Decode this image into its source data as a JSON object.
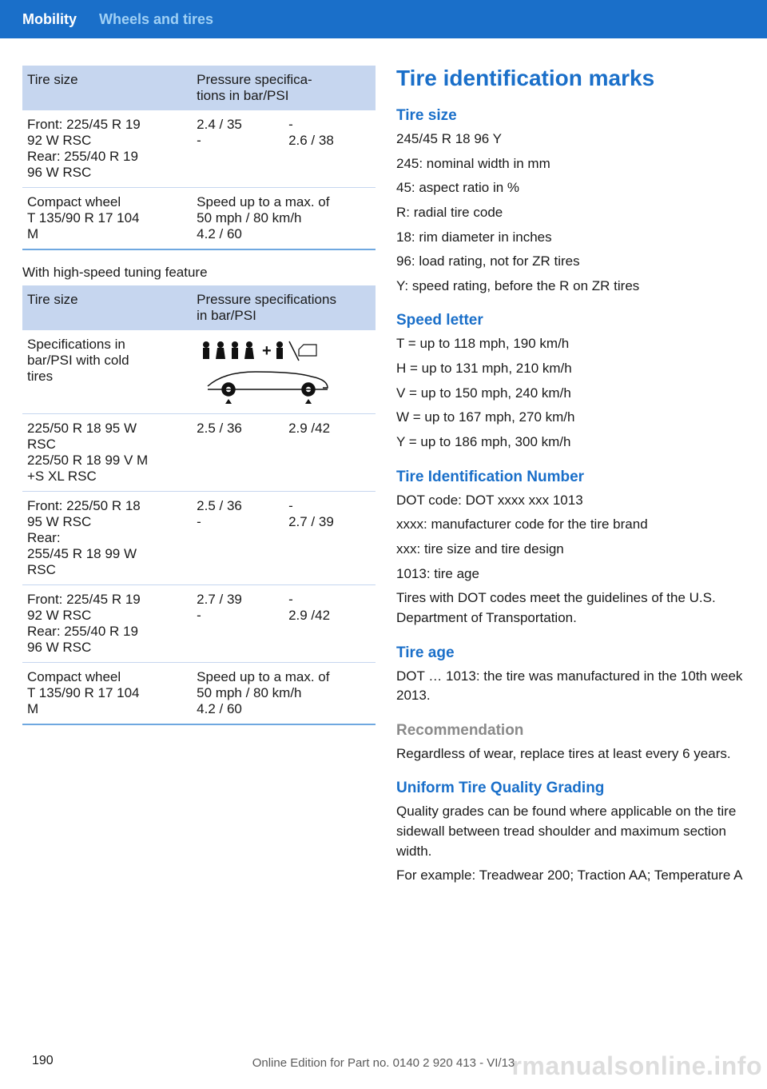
{
  "header": {
    "tab": "Mobility",
    "sub": "Wheels and tires"
  },
  "table1": {
    "h1": "Tire size",
    "h2": "Pressure specifica‐\ntions in bar/PSI",
    "rows": [
      {
        "c1": "Front: 225/45 R 19\n92 W RSC\nRear: 255/40 R 19\n96 W RSC",
        "c2a": "2.4 / 35\n-",
        "c2b": "-\n2.6 / 38"
      },
      {
        "c1": "Compact wheel\nT 135/90 R 17 104\nM",
        "c2": "Speed up to a max. of\n50 mph / 80 km/h\n4.2 / 60"
      }
    ]
  },
  "caption": "With high-speed tuning feature",
  "table2": {
    "h1": "Tire size",
    "h2": "Pressure specifications\nin bar/PSI",
    "rows": [
      {
        "c1": "Specifications in\nbar/PSI with cold\ntires",
        "svg": true
      },
      {
        "c1": "225/50 R 18 95 W\nRSC\n225/50 R 18 99 V M\n+S XL RSC",
        "c2a": "2.5 / 36",
        "c2b": "2.9 /42"
      },
      {
        "c1": "Front: 225/50 R 18\n95 W RSC\nRear:\n255/45 R 18 99 W\nRSC",
        "c2a": "2.5 / 36\n-",
        "c2b": "-\n2.7 / 39"
      },
      {
        "c1": "Front: 225/45 R 19\n92 W RSC\nRear: 255/40 R 19\n96 W RSC",
        "c2a": "2.7 / 39\n-",
        "c2b": "-\n2.9 /42"
      },
      {
        "c1": "Compact wheel\nT 135/90 R 17 104\nM",
        "c2": "Speed up to a max. of\n50 mph / 80 km/h\n4.2 / 60"
      }
    ]
  },
  "right": {
    "title": "Tire identification marks",
    "sections": [
      {
        "h": "Tire size",
        "lines": [
          "245/45 R 18 96 Y",
          "245: nominal width in mm",
          "45: aspect ratio in %",
          "R: radial tire code",
          "18: rim diameter in inches",
          "96: load rating, not for ZR tires",
          "Y: speed rating, before the R on ZR tires"
        ]
      },
      {
        "h": "Speed letter",
        "lines": [
          "T = up to 118 mph, 190 km/h",
          "H = up to 131 mph, 210 km/h",
          "V = up to 150 mph, 240 km/h",
          "W = up to 167 mph, 270 km/h",
          "Y = up to 186 mph, 300 km/h"
        ]
      },
      {
        "h": "Tire Identification Number",
        "lines": [
          "DOT code: DOT xxxx xxx 1013",
          "xxxx: manufacturer code for the tire brand",
          "xxx: tire size and tire design",
          "1013: tire age",
          "Tires with DOT codes meet the guidelines of the U.S. Department of Transportation."
        ]
      },
      {
        "h": "Tire age",
        "lines": [
          "DOT … 1013: the tire was manufactured in the 10th week 2013."
        ]
      },
      {
        "h": "Recommendation",
        "gray": true,
        "lines": [
          "Regardless of wear, replace tires at least every 6 years."
        ]
      },
      {
        "h": "Uniform Tire Quality Grading",
        "lines": [
          "Quality grades can be found where applicable on the tire sidewall between tread shoulder and maximum section width.",
          "For example: Treadwear 200; Traction AA; Temperature A"
        ]
      }
    ]
  },
  "pageNum": "190",
  "footer": "Online Edition for Part no. 0140 2 920 413 - VI/13",
  "watermark": "rmanualsonline.info"
}
